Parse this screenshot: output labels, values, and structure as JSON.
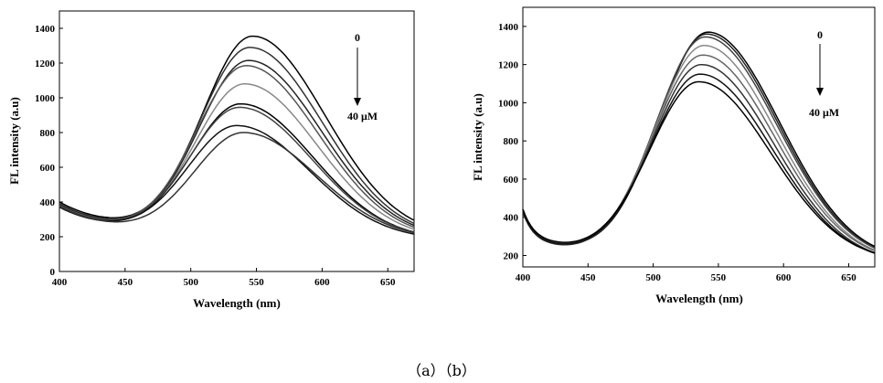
{
  "caption": "（a）（b）",
  "chart_data": [
    {
      "type": "line",
      "panel": "a",
      "xlabel": "Wavelength (nm)",
      "ylabel": "FL intensity (a.u)",
      "xlim": [
        400,
        670
      ],
      "ylim": [
        0,
        1500
      ],
      "xticks": [
        400,
        450,
        500,
        550,
        600,
        650
      ],
      "yticks": [
        0,
        200,
        400,
        600,
        800,
        1000,
        1200,
        1400
      ],
      "annotation": {
        "top": "0",
        "bottom": "40 μM"
      },
      "series": [
        {
          "color": "#000000",
          "peak": 1355,
          "peak_x": 547,
          "base": 360
        },
        {
          "color": "#333333",
          "peak": 1290,
          "peak_x": 545,
          "base": 350
        },
        {
          "color": "#222222",
          "peak": 1215,
          "peak_x": 544,
          "base": 345
        },
        {
          "color": "#555555",
          "peak": 1185,
          "peak_x": 542,
          "base": 340
        },
        {
          "color": "#888888",
          "peak": 1080,
          "peak_x": 541,
          "base": 335
        },
        {
          "color": "#000000",
          "peak": 965,
          "peak_x": 538,
          "base": 330
        },
        {
          "color": "#444444",
          "peak": 945,
          "peak_x": 537,
          "base": 335
        },
        {
          "color": "#111111",
          "peak": 840,
          "peak_x": 535,
          "base": 330
        },
        {
          "color": "#333333",
          "peak": 800,
          "peak_x": 540,
          "base": 335
        }
      ]
    },
    {
      "type": "line",
      "panel": "b",
      "xlabel": "Wavelength (nm)",
      "ylabel": "FL intensity (a.u)",
      "xlim": [
        400,
        670
      ],
      "ylim": [
        140,
        1500
      ],
      "xticks": [
        400,
        450,
        500,
        550,
        600,
        650
      ],
      "yticks": [
        200,
        400,
        600,
        800,
        1000,
        1200,
        1400
      ],
      "annotation": {
        "top": "0",
        "bottom": "40 μM"
      },
      "series": [
        {
          "color": "#000000",
          "peak": 1370,
          "peak_x": 542,
          "base": 300
        },
        {
          "color": "#222222",
          "peak": 1360,
          "peak_x": 541,
          "base": 295
        },
        {
          "color": "#444444",
          "peak": 1345,
          "peak_x": 540,
          "base": 300
        },
        {
          "color": "#888888",
          "peak": 1300,
          "peak_x": 539,
          "base": 290
        },
        {
          "color": "#666666",
          "peak": 1250,
          "peak_x": 538,
          "base": 295
        },
        {
          "color": "#333333",
          "peak": 1200,
          "peak_x": 537,
          "base": 285
        },
        {
          "color": "#111111",
          "peak": 1150,
          "peak_x": 536,
          "base": 290
        },
        {
          "color": "#000000",
          "peak": 1110,
          "peak_x": 535,
          "base": 300
        }
      ]
    }
  ]
}
